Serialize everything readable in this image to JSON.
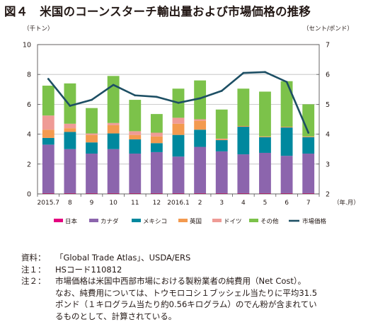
{
  "title": "図４　米国のコーンスターチ輸出量および市場価格の推移",
  "chart_data": {
    "type": "bar",
    "stacked": true,
    "y_left_unit": "（千トン）",
    "y_right_unit": "（セント/ポンド）",
    "x_unit": "（年.月）",
    "ylim": [
      0,
      10
    ],
    "y2lim": [
      2,
      7
    ],
    "yticks": [
      0,
      2,
      4,
      6,
      8,
      10
    ],
    "y2ticks": [
      2,
      3,
      4,
      5,
      6,
      7
    ],
    "grid": true,
    "legend_position": "bottom",
    "categories": [
      "2015.7",
      "8",
      "9",
      "10",
      "11",
      "12",
      "2016.1",
      "2",
      "3",
      "4",
      "5",
      "6",
      "7"
    ],
    "series": [
      {
        "name": "日本",
        "color": "#e4007f",
        "values": [
          0.05,
          0.05,
          0.05,
          0.05,
          0.05,
          0.05,
          0.05,
          0.05,
          0.05,
          0.05,
          0.05,
          0.05,
          0.05
        ]
      },
      {
        "name": "カナダ",
        "color": "#8c65ad",
        "values": [
          3.25,
          2.95,
          2.65,
          2.95,
          2.65,
          2.75,
          2.45,
          3.1,
          2.8,
          2.6,
          2.7,
          2.5,
          2.65
        ]
      },
      {
        "name": "メキシコ",
        "color": "#00889e",
        "values": [
          0.45,
          1.15,
          0.75,
          1.05,
          0.95,
          0.6,
          1.45,
          1.15,
          0.75,
          1.85,
          1.05,
          1.9,
          1.1
        ]
      },
      {
        "name": "英国",
        "color": "#f39a4f",
        "values": [
          0.55,
          0.25,
          0.5,
          0.55,
          0.3,
          0.45,
          0.75,
          0.6,
          0.05,
          0.05,
          0.05,
          0.05,
          0.05
        ]
      },
      {
        "name": "ドイツ",
        "color": "#ef9b96",
        "values": [
          0.95,
          0.3,
          0.1,
          0.15,
          0.25,
          0.25,
          0.4,
          0.1,
          0.05,
          0.0,
          0.0,
          0.0,
          0.0
        ]
      },
      {
        "name": "その他",
        "color": "#7cc24a",
        "values": [
          2.0,
          2.7,
          1.7,
          3.15,
          2.1,
          1.25,
          1.95,
          2.6,
          1.95,
          2.5,
          3.0,
          3.05,
          2.15
        ]
      }
    ],
    "line_series": {
      "name": "市場価格",
      "color": "#1d4f64",
      "axis": "right",
      "values": [
        5.85,
        4.95,
        5.15,
        5.65,
        5.3,
        5.25,
        5.05,
        5.2,
        5.45,
        6.05,
        6.08,
        5.75,
        4.05
      ]
    }
  },
  "notes": [
    {
      "key": "資料：",
      "lines": [
        "「Global Trade Atlas」、USDA/ERS"
      ]
    },
    {
      "key": "注１：",
      "lines": [
        "HSコード110812"
      ]
    },
    {
      "key": "注２：",
      "lines": [
        "市場価格は米国中西部市場における製粉業者の純費用（Net Cost）。",
        "なお、純費用については、トウモロコシ１ブッシェル当たりに平均31.5",
        "ポンド（１キログラム当たり約0.56キログラム）のでん粉が含まれてい",
        "るものとして、計算されている。"
      ]
    }
  ]
}
